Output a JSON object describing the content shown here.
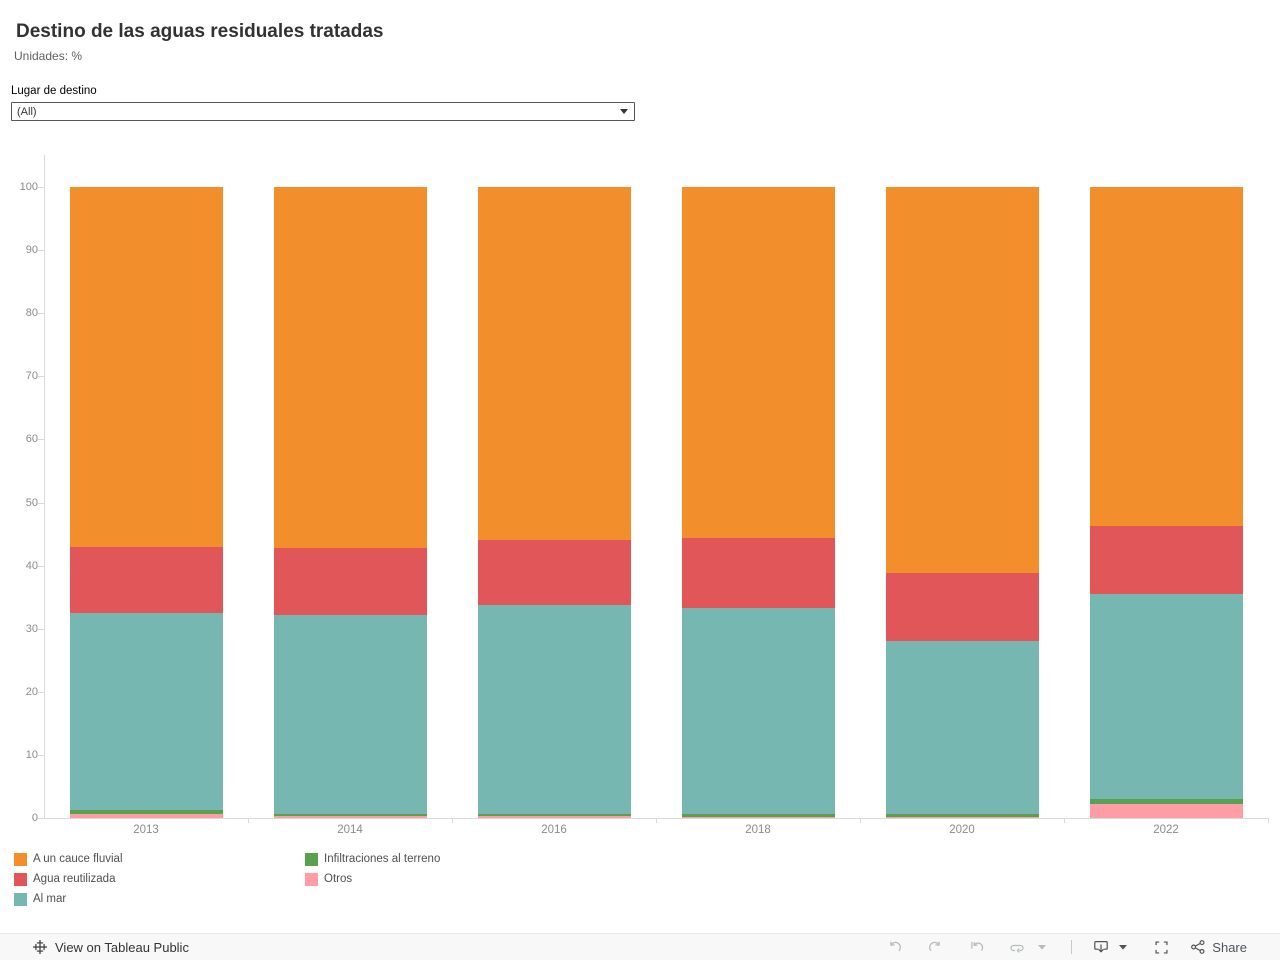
{
  "header": {
    "title": "Destino de las aguas residuales tratadas",
    "subtitle": "Unidades: %"
  },
  "filter": {
    "label": "Lugar de destino",
    "value": "(All)"
  },
  "chart_data": {
    "type": "bar",
    "stacked": true,
    "title": "Destino de las aguas residuales tratadas",
    "units": "%",
    "xlabel": "",
    "ylabel": "",
    "ylim": [
      0,
      100
    ],
    "yticks": [
      0,
      10,
      20,
      30,
      40,
      50,
      60,
      70,
      80,
      90,
      100
    ],
    "grid": false,
    "categories": [
      "2013",
      "2014",
      "2016",
      "2018",
      "2020",
      "2022"
    ],
    "series": [
      {
        "name": "Otros",
        "color": "#FF9DA7",
        "values": [
          0.6,
          0.3,
          0.3,
          0.2,
          0.2,
          2.2
        ]
      },
      {
        "name": "Infiltraciones al terreno",
        "color": "#59A14F",
        "values": [
          0.6,
          0.4,
          0.4,
          0.4,
          0.4,
          0.8
        ]
      },
      {
        "name": "Al mar",
        "color": "#76B7B2",
        "values": [
          31.3,
          31.5,
          33.1,
          32.7,
          27.5,
          32.5
        ]
      },
      {
        "name": "Agua reutilizada",
        "color": "#E15759",
        "values": [
          10.5,
          10.6,
          10.2,
          11.1,
          10.8,
          10.7
        ]
      },
      {
        "name": "A un cauce fluvial",
        "color": "#F28E2B",
        "values": [
          57.0,
          57.2,
          56.0,
          55.6,
          61.1,
          53.8
        ]
      }
    ],
    "legend_position": "bottom-left",
    "legend_columns": [
      [
        "A un cauce fluvial",
        "Agua reutilizada",
        "Al mar"
      ],
      [
        "Infiltraciones al terreno",
        "Otros"
      ]
    ]
  },
  "toolbar": {
    "view_on_label": "View on Tableau Public",
    "share_label": "Share",
    "icon_names": [
      "tableau-logo-icon",
      "undo-icon",
      "redo-icon",
      "replay-icon",
      "refresh-icon",
      "caret-down-icon",
      "device-preview-icon",
      "fullscreen-icon",
      "share-icon"
    ]
  },
  "colors": {
    "axis": "#d9d9d9",
    "tick_text": "#8a8a8a",
    "toolbar_bg": "#f8f8f8"
  }
}
